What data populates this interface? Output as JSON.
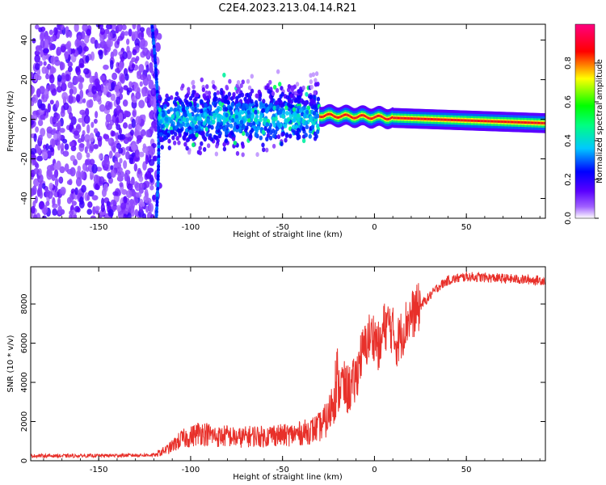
{
  "title": "C2E4.2023.213.04.14.R21",
  "chart_data": [
    {
      "type": "heatmap",
      "xlabel": "Height of straight line (km)",
      "ylabel": "Frequency (Hz)",
      "xlim": [
        -187,
        93
      ],
      "ylim": [
        -50,
        48
      ],
      "xticks": [
        -150,
        -100,
        -50,
        0,
        50
      ],
      "yticks": [
        -40,
        -20,
        0,
        20,
        40
      ],
      "colorbar": {
        "label": "Normalized spectral amplitude",
        "range": [
          0.0,
          1.0
        ],
        "ticks": [
          0.0,
          0.2,
          0.4,
          0.6,
          0.8
        ],
        "colormap": [
          "#ffffff",
          "#8c00ff",
          "#0000ff",
          "#00c8ff",
          "#00ff00",
          "#ffff00",
          "#ff0000",
          "#ff0080"
        ]
      },
      "features": {
        "noise_region_x": [
          -187,
          -117
        ],
        "diagonal_streak": {
          "x_start": -121,
          "y_start": 48,
          "x_end": -119,
          "y_end": -50
        },
        "spread_band": {
          "x": [
            -117,
            -30
          ],
          "y_center": 0,
          "half_width": 12
        },
        "narrow_carrier": {
          "x": [
            -30,
            93
          ],
          "y_center": [
            2,
            -2
          ],
          "amplitude_peak": 1.0
        }
      }
    },
    {
      "type": "line",
      "xlabel": "Height of straight line (km)",
      "ylabel": "SNR (10 * v/v)",
      "xlim": [
        -187,
        93
      ],
      "ylim": [
        0,
        9900
      ],
      "xticks": [
        -150,
        -100,
        -50,
        0,
        50
      ],
      "yticks": [
        0,
        2000,
        4000,
        6000,
        8000
      ],
      "series": [
        {
          "color": "#e8302a",
          "x": [
            -187,
            -170,
            -150,
            -130,
            -118,
            -112,
            -105,
            -100,
            -95,
            -90,
            -85,
            -80,
            -75,
            -70,
            -65,
            -60,
            -55,
            -50,
            -45,
            -40,
            -35,
            -30,
            -25,
            -20,
            -18,
            -15,
            -12,
            -10,
            -8,
            -5,
            -3,
            0,
            3,
            5,
            8,
            10,
            12,
            15,
            18,
            20,
            25,
            30,
            35,
            40,
            50,
            60,
            70,
            80,
            93
          ],
          "values": [
            250,
            250,
            260,
            280,
            300,
            500,
            900,
            1000,
            1200,
            1100,
            1000,
            1050,
            950,
            1000,
            1050,
            1000,
            1100,
            1050,
            1100,
            1150,
            1250,
            1400,
            1800,
            3500,
            4000,
            3600,
            3800,
            4200,
            5200,
            5800,
            6300,
            6400,
            5600,
            6800,
            7000,
            6600,
            6000,
            6500,
            7200,
            7400,
            7900,
            8400,
            8900,
            9200,
            9400,
            9350,
            9300,
            9250,
            9200
          ]
        }
      ]
    }
  ]
}
